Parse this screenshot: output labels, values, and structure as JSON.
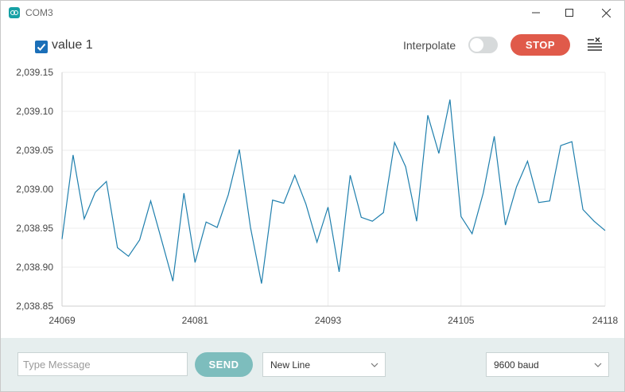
{
  "window": {
    "title": "COM3"
  },
  "toolbar": {
    "series_label": "value 1",
    "series_checked": true,
    "interpolate_label": "Interpolate",
    "interpolate_on": false,
    "stop_label": "STOP"
  },
  "footer": {
    "message_placeholder": "Type Message",
    "send_label": "SEND",
    "line_ending": "New Line",
    "baud": "9600 baud"
  },
  "colors": {
    "line": "#1f7fad",
    "stop": "#e05a4a",
    "send": "#7dbdbd",
    "checkbox": "#1b6fb8"
  },
  "chart_data": {
    "type": "line",
    "series": [
      {
        "name": "value 1",
        "x_start": 24069,
        "x_step": 1,
        "values": [
          2038.936,
          2039.044,
          2038.962,
          2038.996,
          2039.01,
          2038.925,
          2038.914,
          2038.935,
          2038.985,
          2038.934,
          2038.882,
          2038.995,
          2038.906,
          2038.958,
          2038.951,
          2038.993,
          2039.051,
          2038.951,
          2038.879,
          2038.986,
          2038.982,
          2039.018,
          2038.981,
          2038.932,
          2038.977,
          2038.894,
          2039.018,
          2038.964,
          2038.959,
          2038.97,
          2039.06,
          2039.029,
          2038.959,
          2039.095,
          2039.046,
          2039.115,
          2038.965,
          2038.943,
          2038.995,
          2039.068,
          2038.954,
          2039.003,
          2039.036,
          2038.983,
          2038.985,
          2039.056,
          2039.061,
          2038.974,
          2038.959,
          2038.947
        ]
      }
    ],
    "x_ticks": [
      "24069",
      "24081",
      "24093",
      "24105",
      "24118"
    ],
    "y_ticks": [
      "2,039.15",
      "2,039.10",
      "2,039.05",
      "2,039.00",
      "2,038.95",
      "2,038.90",
      "2,038.85"
    ],
    "xlim": [
      24069,
      24118
    ],
    "ylim": [
      2038.85,
      2039.15
    ],
    "grid": true
  }
}
